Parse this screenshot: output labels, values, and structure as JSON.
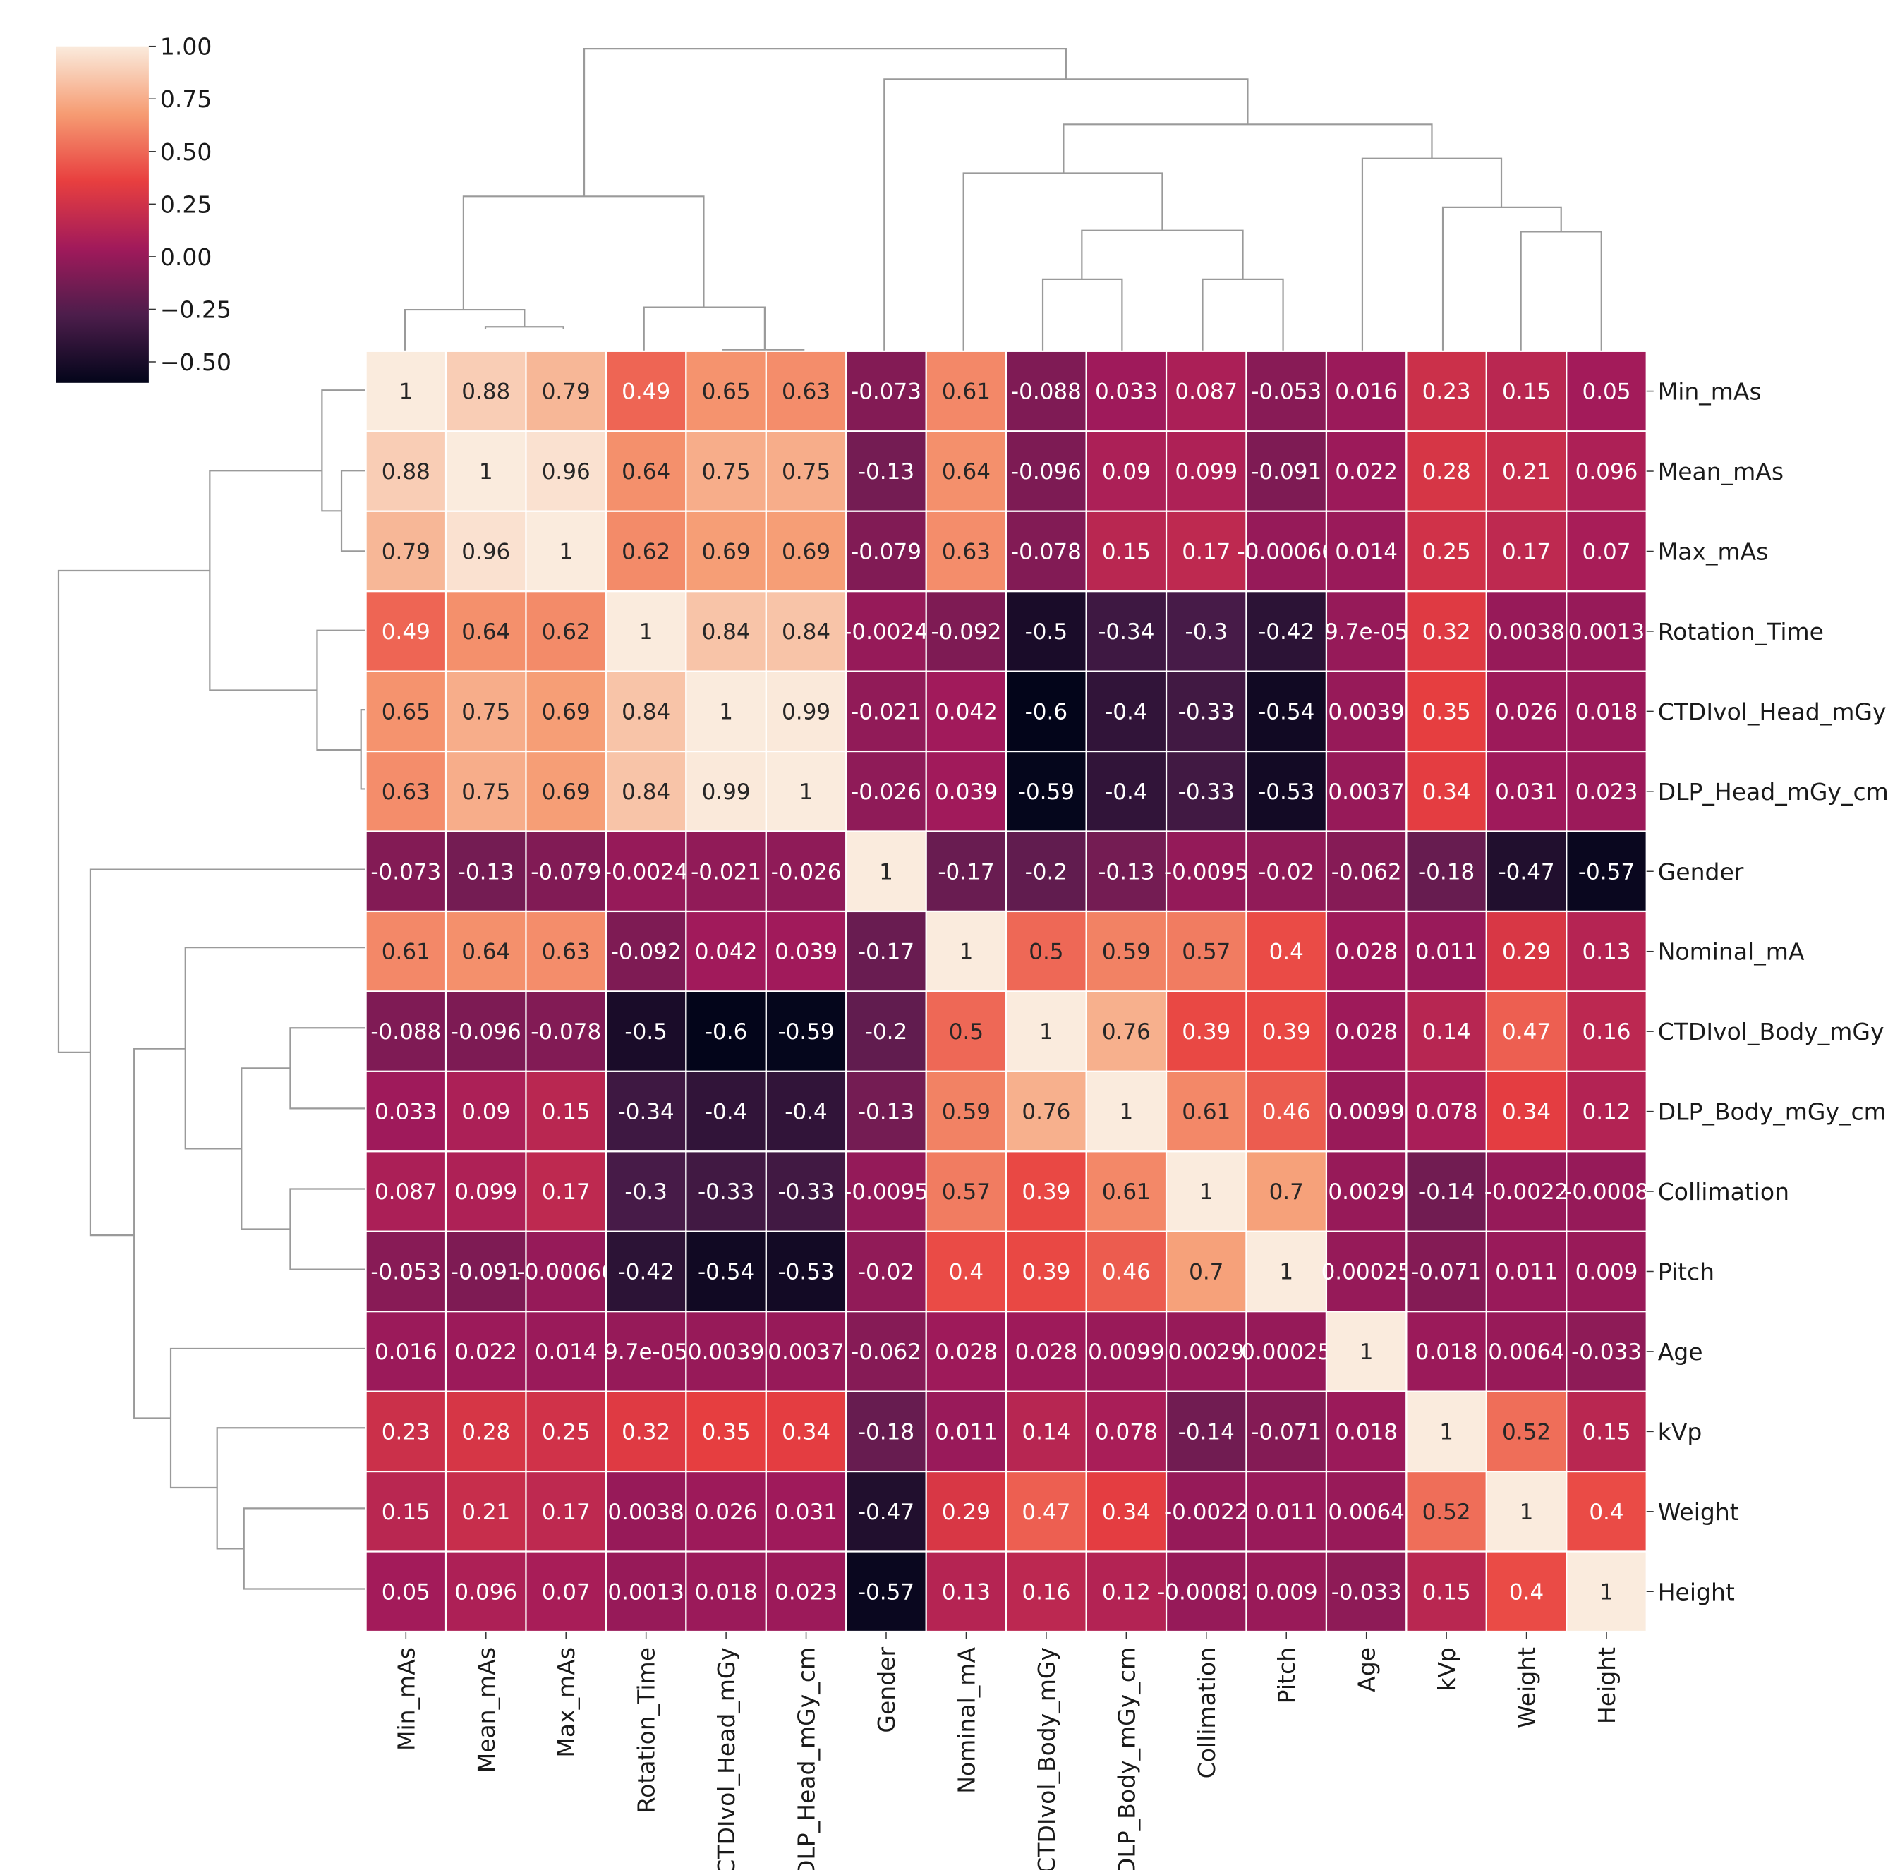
{
  "chart_data": {
    "type": "heatmap",
    "title": "",
    "subtitle": "",
    "xlabel": "",
    "ylabel": "",
    "grid": false,
    "annotations": "cell values shown in each cell; hierarchical clustering dendrograms on top and left",
    "legend": "colorbar top-left",
    "x_labels": [
      "Min_mAs",
      "Mean_mAs",
      "Max_mAs",
      "Rotation_Time",
      "CTDIvol_Head_mGy",
      "DLP_Head_mGy_cm",
      "Gender",
      "Nominal_mA",
      "CTDIvol_Body_mGy",
      "DLP_Body_mGy_cm",
      "Collimation",
      "Pitch",
      "Age",
      "kVp",
      "Weight",
      "Height"
    ],
    "y_labels": [
      "Min_mAs",
      "Mean_mAs",
      "Max_mAs",
      "Rotation_Time",
      "CTDIvol_Head_mGy",
      "DLP_Head_mGy_cm",
      "Gender",
      "Nominal_mA",
      "CTDIvol_Body_mGy",
      "DLP_Body_mGy_cm",
      "Collimation",
      "Pitch",
      "Age",
      "kVp",
      "Weight",
      "Height"
    ],
    "values": [
      [
        1,
        0.88,
        0.79,
        0.49,
        0.65,
        0.63,
        -0.073,
        0.61,
        -0.088,
        0.033,
        0.087,
        -0.053,
        0.016,
        0.23,
        0.15,
        0.05
      ],
      [
        0.88,
        1,
        0.96,
        0.64,
        0.75,
        0.75,
        -0.13,
        0.64,
        -0.096,
        0.09,
        0.099,
        -0.091,
        0.022,
        0.28,
        0.21,
        0.096
      ],
      [
        0.79,
        0.96,
        1,
        0.62,
        0.69,
        0.69,
        -0.079,
        0.63,
        -0.078,
        0.15,
        0.17,
        -0.00066,
        0.014,
        0.25,
        0.17,
        0.07
      ],
      [
        0.49,
        0.64,
        0.62,
        1,
        0.84,
        0.84,
        -0.0024,
        -0.092,
        -0.5,
        -0.34,
        -0.3,
        -0.42,
        9.7e-05,
        0.32,
        0.0038,
        0.0013
      ],
      [
        0.65,
        0.75,
        0.69,
        0.84,
        1,
        0.99,
        -0.021,
        0.042,
        -0.6,
        -0.4,
        -0.33,
        -0.54,
        0.0039,
        0.35,
        0.026,
        0.018
      ],
      [
        0.63,
        0.75,
        0.69,
        0.84,
        0.99,
        1,
        -0.026,
        0.039,
        -0.59,
        -0.4,
        -0.33,
        -0.53,
        0.0037,
        0.34,
        0.031,
        0.023
      ],
      [
        -0.073,
        -0.13,
        -0.079,
        -0.0024,
        -0.021,
        -0.026,
        1,
        -0.17,
        -0.2,
        -0.13,
        -0.0095,
        -0.02,
        -0.062,
        -0.18,
        -0.47,
        -0.57
      ],
      [
        0.61,
        0.64,
        0.63,
        -0.092,
        0.042,
        0.039,
        -0.17,
        1,
        0.5,
        0.59,
        0.57,
        0.4,
        0.028,
        0.011,
        0.29,
        0.13
      ],
      [
        -0.088,
        -0.096,
        -0.078,
        -0.5,
        -0.6,
        -0.59,
        -0.2,
        0.5,
        1,
        0.76,
        0.39,
        0.39,
        0.028,
        0.14,
        0.47,
        0.16
      ],
      [
        0.033,
        0.09,
        0.15,
        -0.34,
        -0.4,
        -0.4,
        -0.13,
        0.59,
        0.76,
        1,
        0.61,
        0.46,
        0.0099,
        0.078,
        0.34,
        0.12
      ],
      [
        0.087,
        0.099,
        0.17,
        -0.3,
        -0.33,
        -0.33,
        -0.0095,
        0.57,
        0.39,
        0.61,
        1,
        0.7,
        0.0029,
        -0.14,
        -0.0022,
        -0.0008
      ],
      [
        -0.053,
        -0.091,
        -0.00066,
        -0.42,
        -0.54,
        -0.53,
        -0.02,
        0.4,
        0.39,
        0.46,
        0.7,
        1,
        0.00025,
        -0.071,
        0.011,
        0.009
      ],
      [
        0.016,
        0.022,
        0.014,
        9.7e-05,
        0.0039,
        0.0037,
        -0.062,
        0.028,
        0.028,
        0.0099,
        0.0029,
        0.00025,
        1,
        0.018,
        0.0064,
        -0.033
      ],
      [
        0.23,
        0.28,
        0.25,
        0.32,
        0.35,
        0.34,
        -0.18,
        0.011,
        0.14,
        0.078,
        -0.14,
        -0.071,
        0.018,
        1,
        0.52,
        0.15
      ],
      [
        0.15,
        0.21,
        0.17,
        0.0038,
        0.026,
        0.031,
        -0.47,
        0.29,
        0.47,
        0.34,
        -0.0022,
        0.011,
        0.0064,
        0.52,
        1,
        0.4
      ],
      [
        0.05,
        0.096,
        0.07,
        0.0013,
        0.018,
        0.023,
        -0.57,
        0.13,
        0.16,
        0.12,
        -0.00082,
        0.009,
        -0.033,
        0.15,
        0.4,
        1
      ]
    ],
    "labels": [
      [
        "1",
        "0.88",
        "0.79",
        "0.49",
        "0.65",
        "0.63",
        "-0.073",
        "0.61",
        "-0.088",
        "0.033",
        "0.087",
        "-0.053",
        "0.016",
        "0.23",
        "0.15",
        "0.05"
      ],
      [
        "0.88",
        "1",
        "0.96",
        "0.64",
        "0.75",
        "0.75",
        "-0.13",
        "0.64",
        "-0.096",
        "0.09",
        "0.099",
        "-0.091",
        "0.022",
        "0.28",
        "0.21",
        "0.096"
      ],
      [
        "0.79",
        "0.96",
        "1",
        "0.62",
        "0.69",
        "0.69",
        "-0.079",
        "0.63",
        "-0.078",
        "0.15",
        "0.17",
        "-0.00066",
        "0.014",
        "0.25",
        "0.17",
        "0.07"
      ],
      [
        "0.49",
        "0.64",
        "0.62",
        "1",
        "0.84",
        "0.84",
        "-0.0024",
        "-0.092",
        "-0.5",
        "-0.34",
        "-0.3",
        "-0.42",
        "9.7e-05",
        "0.32",
        "0.0038",
        "0.0013"
      ],
      [
        "0.65",
        "0.75",
        "0.69",
        "0.84",
        "1",
        "0.99",
        "-0.021",
        "0.042",
        "-0.6",
        "-0.4",
        "-0.33",
        "-0.54",
        "0.0039",
        "0.35",
        "0.026",
        "0.018"
      ],
      [
        "0.63",
        "0.75",
        "0.69",
        "0.84",
        "0.99",
        "1",
        "-0.026",
        "0.039",
        "-0.59",
        "-0.4",
        "-0.33",
        "-0.53",
        "0.0037",
        "0.34",
        "0.031",
        "0.023"
      ],
      [
        "-0.073",
        "-0.13",
        "-0.079",
        "-0.0024",
        "-0.021",
        "-0.026",
        "1",
        "-0.17",
        "-0.2",
        "-0.13",
        "-0.0095",
        "-0.02",
        "-0.062",
        "-0.18",
        "-0.47",
        "-0.57"
      ],
      [
        "0.61",
        "0.64",
        "0.63",
        "-0.092",
        "0.042",
        "0.039",
        "-0.17",
        "1",
        "0.5",
        "0.59",
        "0.57",
        "0.4",
        "0.028",
        "0.011",
        "0.29",
        "0.13"
      ],
      [
        "-0.088",
        "-0.096",
        "-0.078",
        "-0.5",
        "-0.6",
        "-0.59",
        "-0.2",
        "0.5",
        "1",
        "0.76",
        "0.39",
        "0.39",
        "0.028",
        "0.14",
        "0.47",
        "0.16"
      ],
      [
        "0.033",
        "0.09",
        "0.15",
        "-0.34",
        "-0.4",
        "-0.4",
        "-0.13",
        "0.59",
        "0.76",
        "1",
        "0.61",
        "0.46",
        "0.0099",
        "0.078",
        "0.34",
        "0.12"
      ],
      [
        "0.087",
        "0.099",
        "0.17",
        "-0.3",
        "-0.33",
        "-0.33",
        "-0.0095",
        "0.57",
        "0.39",
        "0.61",
        "1",
        "0.7",
        "0.0029",
        "-0.14",
        "-0.0022",
        "-0.0008"
      ],
      [
        "-0.053",
        "-0.091",
        "-0.00066",
        "-0.42",
        "-0.54",
        "-0.53",
        "-0.02",
        "0.4",
        "0.39",
        "0.46",
        "0.7",
        "1",
        "0.00025",
        "-0.071",
        "0.011",
        "0.009"
      ],
      [
        "0.016",
        "0.022",
        "0.014",
        "9.7e-05",
        "0.0039",
        "0.0037",
        "-0.062",
        "0.028",
        "0.028",
        "0.0099",
        "0.0029",
        "0.00025",
        "1",
        "0.018",
        "0.0064",
        "-0.033"
      ],
      [
        "0.23",
        "0.28",
        "0.25",
        "0.32",
        "0.35",
        "0.34",
        "-0.18",
        "0.011",
        "0.14",
        "0.078",
        "-0.14",
        "-0.071",
        "0.018",
        "1",
        "0.52",
        "0.15"
      ],
      [
        "0.15",
        "0.21",
        "0.17",
        "0.0038",
        "0.026",
        "0.031",
        "-0.47",
        "0.29",
        "0.47",
        "0.34",
        "-0.0022",
        "0.011",
        "0.0064",
        "0.52",
        "1",
        "0.4"
      ],
      [
        "0.05",
        "0.096",
        "0.07",
        "0.0013",
        "0.018",
        "0.023",
        "-0.57",
        "0.13",
        "0.16",
        "0.12",
        "-0.00082",
        "0.009",
        "-0.033",
        "0.15",
        "0.4",
        "1"
      ]
    ],
    "colorbar": {
      "vmin": -0.6,
      "vmax": 1.0,
      "ticks": [
        1.0,
        0.75,
        0.5,
        0.25,
        0.0,
        -0.25,
        -0.5
      ],
      "tick_labels": [
        "1.00",
        "0.75",
        "0.50",
        "0.25",
        "0.00",
        "−0.25",
        "−0.50"
      ],
      "colormap": "rocket",
      "stops": [
        "#03051a",
        "#4c1d4b",
        "#a11a5b",
        "#e83f3f",
        "#f69c73",
        "#faebdd"
      ]
    },
    "cell_border_color": "#ffffff",
    "dendrogram_color": "#9a9a9a"
  }
}
